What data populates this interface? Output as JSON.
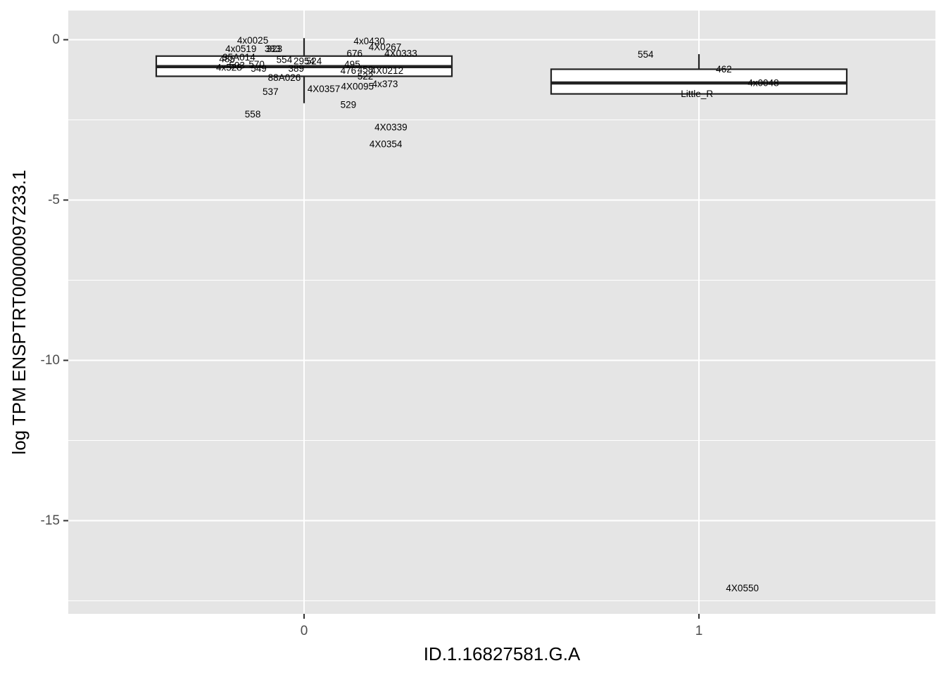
{
  "chart_data": {
    "type": "boxplot",
    "xlabel": "ID.1.16827581.G.A",
    "ylabel": "log TPM ENSPTRT00000097233.1",
    "categories": [
      "0",
      "1"
    ],
    "ylim": [
      -17.8,
      0.9
    ],
    "yticks": [
      0,
      -5,
      -10,
      -15
    ],
    "ytick_labels": [
      "0",
      "-5",
      "-10",
      "-15"
    ],
    "grid": true,
    "background": "#e5e5e5",
    "grid_color": "#ffffff",
    "box_fill": "#ffffff",
    "box_stroke": "#222222",
    "boxes": [
      {
        "category": "0",
        "whisker_low": -1.98,
        "q1": -1.14,
        "median": -0.84,
        "q3": -0.51,
        "whisker_high": 0.05
      },
      {
        "category": "1",
        "whisker_low": -1.69,
        "q1": -1.69,
        "median": -1.35,
        "q3": -0.92,
        "whisker_high": -0.45
      }
    ],
    "labeled_points": [
      {
        "label": "4x0025",
        "x": -0.13,
        "y": -0.02
      },
      {
        "label": "4x0519",
        "x": -0.16,
        "y": -0.29
      },
      {
        "label": "383",
        "x": -0.08,
        "y": -0.29
      },
      {
        "label": "323",
        "x": -0.075,
        "y": -0.29
      },
      {
        "label": "95A014",
        "x": -0.165,
        "y": -0.55
      },
      {
        "label": "485",
        "x": -0.195,
        "y": -0.6
      },
      {
        "label": "570",
        "x": -0.12,
        "y": -0.77
      },
      {
        "label": "503",
        "x": -0.17,
        "y": -0.8
      },
      {
        "label": "4x528",
        "x": -0.19,
        "y": -0.87
      },
      {
        "label": "549",
        "x": -0.115,
        "y": -0.9
      },
      {
        "label": "554",
        "x": -0.05,
        "y": -0.63
      },
      {
        "label": "2954",
        "x": 0.0,
        "y": -0.67
      },
      {
        "label": "524",
        "x": 0.025,
        "y": -0.67
      },
      {
        "label": "389",
        "x": -0.02,
        "y": -0.9
      },
      {
        "label": "88A026",
        "x": -0.05,
        "y": -1.18
      },
      {
        "label": "537",
        "x": -0.085,
        "y": -1.62
      },
      {
        "label": "558",
        "x": -0.13,
        "y": -2.32
      },
      {
        "label": "4x0430",
        "x": 0.165,
        "y": -0.04
      },
      {
        "label": "4X0267",
        "x": 0.205,
        "y": -0.23
      },
      {
        "label": "676",
        "x": 0.128,
        "y": -0.43
      },
      {
        "label": "4X0333",
        "x": 0.245,
        "y": -0.43
      },
      {
        "label": "495",
        "x": 0.122,
        "y": -0.77
      },
      {
        "label": "476",
        "x": 0.112,
        "y": -0.96
      },
      {
        "label": "458",
        "x": 0.155,
        "y": -0.93
      },
      {
        "label": "4X0212",
        "x": 0.21,
        "y": -0.96
      },
      {
        "label": "522",
        "x": 0.155,
        "y": -1.14
      },
      {
        "label": "4x373",
        "x": 0.205,
        "y": -1.38
      },
      {
        "label": "4X0095",
        "x": 0.135,
        "y": -1.46
      },
      {
        "label": "4X0357",
        "x": 0.05,
        "y": -1.53
      },
      {
        "label": "529",
        "x": 0.112,
        "y": -2.03
      },
      {
        "label": "4X0339",
        "x": 0.22,
        "y": -2.73
      },
      {
        "label": "4X0354",
        "x": 0.207,
        "y": -3.26
      },
      {
        "label": "554",
        "x": 0.865,
        "y": -0.46
      },
      {
        "label": "462",
        "x": 1.063,
        "y": -0.92
      },
      {
        "label": "4x0048",
        "x": 1.163,
        "y": -1.35
      },
      {
        "label": "Little_R",
        "x": 0.995,
        "y": -1.69
      },
      {
        "label": "4X0550",
        "x": 1.11,
        "y": -17.11
      }
    ]
  }
}
